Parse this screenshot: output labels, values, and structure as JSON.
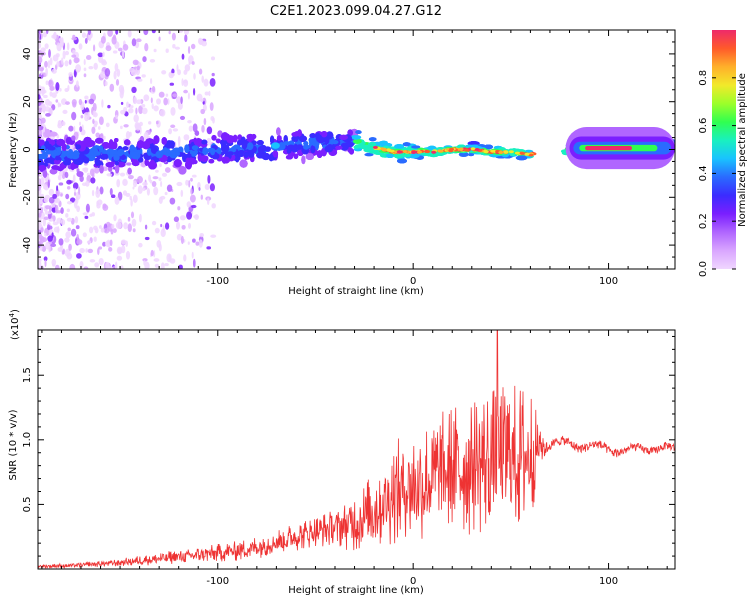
{
  "title": "C2E1.2023.099.04.27.G12",
  "colors": {
    "snr_line": "#ee3333",
    "colormap": [
      "#f0d6ff",
      "#d9a6ff",
      "#b066ff",
      "#7a1fff",
      "#3b2cff",
      "#2a6bff",
      "#19c3ff",
      "#19f0c0",
      "#30ff50",
      "#9cff2a",
      "#f2e92a",
      "#ffb02a",
      "#ff5a2a",
      "#ee2a6a"
    ]
  },
  "chart_data": [
    {
      "type": "heatmap",
      "xlabel": "Height of straight line (km)",
      "ylabel": "Frequency (Hz)",
      "xlim": [
        -192,
        134
      ],
      "ylim": [
        -50,
        50
      ],
      "xticks": [
        -100,
        0,
        100
      ],
      "xtick_labels": [
        "-100",
        "0",
        "100"
      ],
      "yticks": [
        40,
        20,
        0,
        -20,
        -40
      ],
      "ytick_labels": [
        "40",
        "20",
        "0",
        "-20",
        "-40"
      ],
      "ridge": {
        "x": [
          -190,
          -150,
          -120,
          -100,
          -80,
          -60,
          -40,
          -30,
          -20,
          -10,
          0,
          10,
          20,
          30,
          40,
          50,
          60,
          70,
          80,
          90,
          100,
          110,
          120,
          134
        ],
        "y": [
          -2,
          -2,
          -1,
          0,
          1,
          2,
          3,
          3,
          1,
          -1,
          -1,
          -1,
          0,
          0,
          -1,
          -1,
          -2,
          -1,
          0,
          0,
          0,
          0.5,
          1,
          2
        ]
      },
      "colorbar": {
        "label": "Normalized spectral amplitude",
        "range": [
          0.0,
          1.0
        ],
        "ticks": [
          0.0,
          0.2,
          0.4,
          0.6,
          0.8
        ],
        "tick_labels": [
          "0.0",
          "0.2",
          "0.4",
          "0.6",
          "0.8"
        ]
      }
    },
    {
      "type": "line",
      "xlabel": "Height of straight line (km)",
      "ylabel": "SNR (10 * v/v)",
      "ylabel_scale": "(x10",
      "ylabel_scale_exp": "4",
      "ylabel_scale_close": ")",
      "xlim": [
        -192,
        134
      ],
      "ylim": [
        0,
        18500
      ],
      "xticks": [
        -100,
        0,
        100
      ],
      "xtick_labels": [
        "-100",
        "0",
        "100"
      ],
      "yticks": [
        5000,
        10000,
        15000
      ],
      "ytick_labels": [
        "0.5",
        "1.0",
        "1.5"
      ],
      "series": [
        {
          "color": "#ee3333",
          "x": [
            -192,
            -170,
            -150,
            -130,
            -110,
            -90,
            -80,
            -70,
            -60,
            -50,
            -40,
            -35,
            -30,
            -25,
            -20,
            -15,
            -10,
            -5,
            0,
            5,
            10,
            15,
            20,
            25,
            30,
            35,
            40,
            45,
            50,
            55,
            60,
            63,
            65,
            68,
            70,
            75,
            80,
            85,
            90,
            95,
            100,
            105,
            110,
            115,
            120,
            125,
            134
          ],
          "mean": [
            200,
            300,
            500,
            800,
            1100,
            1400,
            1700,
            2100,
            2500,
            2900,
            3200,
            3400,
            3600,
            4000,
            4600,
            5200,
            5800,
            6200,
            6400,
            6700,
            7000,
            7300,
            7600,
            7800,
            8000,
            8200,
            8400,
            8500,
            8600,
            8700,
            8800,
            9200,
            9500,
            9600,
            9700,
            9700,
            9700,
            9600,
            9500,
            9400,
            9300,
            9200,
            9100,
            9300,
            9400,
            9300,
            9300
          ],
          "spread": [
            150,
            200,
            300,
            500,
            600,
            800,
            900,
            1000,
            1100,
            1200,
            1500,
            1900,
            2300,
            2700,
            3000,
            3500,
            4000,
            4300,
            4500,
            4700,
            4800,
            5000,
            5200,
            5400,
            5500,
            5600,
            5700,
            5800,
            5800,
            5800,
            5600,
            3000,
            1200,
            500,
            350,
            350,
            350,
            350,
            350,
            350,
            350,
            350,
            300,
            300,
            300,
            300,
            300
          ],
          "peak": {
            "x": 43,
            "y": 18500
          }
        }
      ]
    }
  ]
}
